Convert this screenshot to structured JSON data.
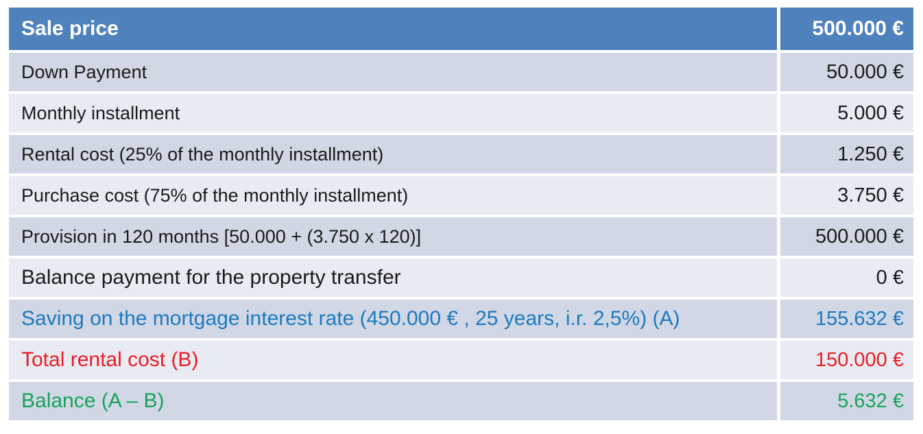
{
  "table": {
    "header": {
      "label": "Sale price",
      "value": "500.000 €"
    },
    "rows": [
      {
        "label": "Down Payment",
        "value": "50.000 €",
        "shade": "dark",
        "text_color": "default",
        "emphasis": "normal"
      },
      {
        "label": "Monthly installment",
        "value": "5.000 €",
        "shade": "light",
        "text_color": "default",
        "emphasis": "normal"
      },
      {
        "label": "Rental cost (25% of the monthly installment)",
        "value": "1.250 €",
        "shade": "dark",
        "text_color": "default",
        "emphasis": "normal"
      },
      {
        "label": "Purchase cost (75% of the monthly installment)",
        "value": "3.750 €",
        "shade": "light",
        "text_color": "default",
        "emphasis": "normal"
      },
      {
        "label": "Provision in 120 months [50.000 + (3.750 x 120)]",
        "value": "500.000 €",
        "shade": "dark",
        "text_color": "default",
        "emphasis": "normal"
      },
      {
        "label": "Balance payment for the property transfer",
        "value": "0 €",
        "shade": "light",
        "text_color": "default",
        "emphasis": "large"
      },
      {
        "label": "Saving on the mortgage interest rate (450.000 € , 25 years, i.r. 2,5%) (A)",
        "value": "155.632 €",
        "shade": "dark",
        "text_color": "blue",
        "emphasis": "large"
      },
      {
        "label": "Total rental cost (B)",
        "value": "150.000 €",
        "shade": "light",
        "text_color": "red",
        "emphasis": "large"
      },
      {
        "label": "Balance (A – B)",
        "value": "5.632 €",
        "shade": "dark",
        "text_color": "green",
        "emphasis": "large"
      }
    ],
    "colors": {
      "header_bg": "#4F81BD",
      "header_text": "#FFFFFF",
      "row_dark_bg": "#D2D7E5",
      "row_light_bg": "#E9EBF3",
      "default_text": "#1A1A1A",
      "blue": "#1B7AC0",
      "red": "#ED1C24",
      "green": "#15A45A"
    }
  }
}
